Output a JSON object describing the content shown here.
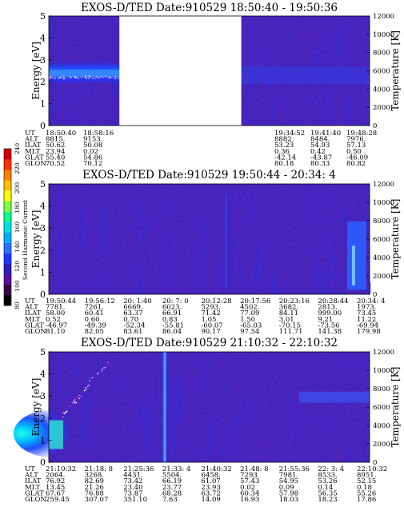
{
  "colorbar": {
    "label": "Second Harmonic Current",
    "ticks": [
      "240",
      "220",
      "200",
      "180",
      "160",
      "140",
      "120",
      "100",
      "80"
    ],
    "colors": [
      "#000000",
      "#3a004a",
      "#5a0fa0",
      "#2a20c0",
      "#1f38ff",
      "#2a70ff",
      "#00b0ff",
      "#00e0e0",
      "#10ff90",
      "#80ff40",
      "#ffff00",
      "#ffc000",
      "#ff8000",
      "#ff3000",
      "#d00000"
    ]
  },
  "chart_data": [
    {
      "type": "heatmap",
      "title": "EXOS-D/TED   Date:910529   18:50:40 - 19:50:36",
      "ylabel": "Energy [eV]",
      "ylabel_right": "Temperature [K]",
      "ylim": [
        0,
        5
      ],
      "ylim_right": [
        0,
        12000
      ],
      "yticks": [
        "0",
        "1",
        "2",
        "3",
        "4",
        "5"
      ],
      "yticks_right": [
        "0",
        "2000",
        "4000",
        "6000",
        "8000",
        "10000",
        "12000"
      ],
      "data_gap": [
        0.22,
        0.6
      ],
      "emission_band": "flat",
      "ephemeris": {
        "labels": [
          "UT",
          "ALT",
          "ILAT",
          "MLT",
          "GLAT",
          "GLON"
        ],
        "columns": [
          [
            "18:50:40",
            "8815.",
            "50.62",
            "23.94",
            "55.40",
            "70.52"
          ],
          [
            "18:58:16",
            "9153.",
            "50.08",
            "0.02",
            "54.86",
            "70.12"
          ],
          [
            "19:34:52",
            "8882.",
            "53.23",
            "0.36",
            "-42.14",
            "80.18"
          ],
          [
            "19:41:40",
            "8484.",
            "54.93",
            "0.42",
            "-43.87",
            "80.33"
          ],
          [
            "19:48:28",
            "7976.",
            "57.13",
            "0.50",
            "-46.09",
            "80.82"
          ]
        ]
      }
    },
    {
      "type": "heatmap",
      "title": "EXOS-D/TED   Date:910529   19:50:44 - 20:34: 4",
      "ylabel": "Energy [eV]",
      "ylabel_right": "Temperature [K]",
      "ylim": [
        0,
        5
      ],
      "ylim_right": [
        0,
        12000
      ],
      "yticks": [
        "0",
        "1",
        "2",
        "3",
        "4",
        "5"
      ],
      "yticks_right": [
        "0",
        "2000",
        "4000",
        "6000",
        "8000",
        "10000",
        "12000"
      ],
      "emission_band": "right_edge",
      "ephemeris": {
        "labels": [
          "UT",
          "ALT",
          "ILAT",
          "MLT",
          "GLAT",
          "GLON"
        ],
        "columns": [
          [
            "19:50:44",
            "7781.",
            "58.00",
            "0.52",
            "-46.97",
            "81.10"
          ],
          [
            "19:56:12",
            "7261.",
            "60.41",
            "0.60",
            "-49.39",
            "82.05"
          ],
          [
            "20: 1:40",
            "6669.",
            "63.37",
            "0.70",
            "-52.34",
            "83.61"
          ],
          [
            "20: 7: 0",
            "6023.",
            "66.91",
            "0.83",
            "-55.81",
            "86.04"
          ],
          [
            "20:12:28",
            "5293.",
            "71.42",
            "1.05",
            "-60.07",
            "90.17"
          ],
          [
            "20:17:56",
            "4502.",
            "77.09",
            "1.50",
            "-65.03",
            "97.54"
          ],
          [
            "20:23:16",
            "3682.",
            "84.11",
            "3.01",
            "-70.15",
            "111.71"
          ],
          [
            "20:28:44",
            "2813.",
            "999.00",
            "9.21",
            "-73.56",
            "141.38"
          ],
          [
            "20:34: 4",
            "1973.",
            "73.45",
            "11.22",
            "-69.94",
            "179.98"
          ]
        ]
      }
    },
    {
      "type": "heatmap",
      "title": "EXOS-D/TED   Date:910529   21:10:32 - 22:10:32",
      "ylabel": "Energy [eV]",
      "ylabel_right": "Temperature [K]",
      "ylim": [
        0,
        5
      ],
      "ylim_right": [
        0,
        12000
      ],
      "yticks": [
        "0",
        "1",
        "2",
        "3",
        "4",
        "5"
      ],
      "yticks_right": [
        "0",
        "2000",
        "4000",
        "6000",
        "8000",
        "10000",
        "12000"
      ],
      "emission_band": "left_burst",
      "ephemeris": {
        "labels": [
          "UT",
          "ALT",
          "ILAT",
          "MLT",
          "GLAT",
          "GLON"
        ],
        "columns": [
          [
            "21:10:32",
            "2064.",
            "76.92",
            "13.45",
            "67.67",
            "259.45"
          ],
          [
            "21:18: 8",
            "3268.",
            "82.69",
            "21.26",
            "76.88",
            "307.07"
          ],
          [
            "21:25:36",
            "4431.",
            "73.42",
            "23.40",
            "73.87",
            "351.10"
          ],
          [
            "21:33: 4",
            "5504.",
            "66.19",
            "23.77",
            "68.28",
            "7.63"
          ],
          [
            "21:40:32",
            "6458.",
            "61.07",
            "23.93",
            "63.72",
            "14.09"
          ],
          [
            "21:48: 8",
            "7293.",
            "57.43",
            "0.02",
            "60.34",
            "16.93"
          ],
          [
            "21:55:36",
            "7981.",
            "54.95",
            "0.09",
            "57.98",
            "18.03"
          ],
          [
            "22: 3: 4",
            "8533.",
            "53.26",
            "0.14",
            "56.35",
            "18.23"
          ],
          [
            "22:10:32",
            "8951.",
            "52.15",
            "0.18",
            "55.26",
            "17.86"
          ]
        ]
      }
    }
  ]
}
